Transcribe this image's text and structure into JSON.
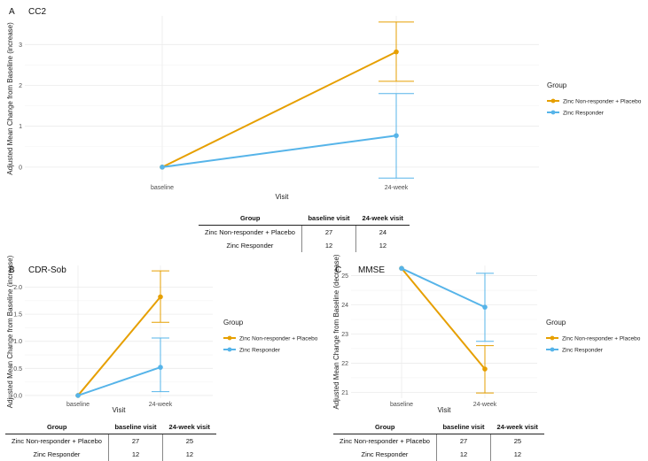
{
  "colors": {
    "nonresponder": "#E69F00",
    "responder": "#56B4E9",
    "grid": "#ebebeb"
  },
  "chart_data": [
    {
      "type": "line",
      "panel_letter": "A",
      "title": "CC2",
      "xlabel": "Visit",
      "ylabel": "Adjusted Mean Change from Baseline (increase)",
      "categories": [
        "baseline",
        "24-week"
      ],
      "ylim": [
        -0.35,
        3.7
      ],
      "yticks": [
        0,
        1,
        2,
        3
      ],
      "ytick_labels": [
        "0",
        "1",
        "2",
        "3"
      ],
      "legend_title": "Group",
      "legend_position": "right",
      "series": [
        {
          "name": "Zinc Non-responder + Placebo",
          "color": "#E69F00",
          "values": [
            0,
            2.82
          ],
          "ci": [
            null,
            [
              2.1,
              3.55
            ]
          ]
        },
        {
          "name": "Zinc Responder",
          "color": "#56B4E9",
          "values": [
            0,
            0.77
          ],
          "ci": [
            null,
            [
              -0.27,
              1.8
            ]
          ]
        }
      ],
      "table": {
        "headers": [
          "Group",
          "baseline visit",
          "24-week visit"
        ],
        "rows": [
          [
            "Zinc Non-responder + Placebo",
            "27",
            "24"
          ],
          [
            "Zinc Responder",
            "12",
            "12"
          ]
        ]
      }
    },
    {
      "type": "line",
      "panel_letter": "B",
      "title": "CDR-Sob",
      "xlabel": "Visit",
      "ylabel": "Adjusted Mean Change from Baseline (increase)",
      "categories": [
        "baseline",
        "24-week"
      ],
      "ylim": [
        -0.05,
        2.4
      ],
      "yticks": [
        0,
        0.5,
        1,
        1.5,
        2
      ],
      "ytick_labels": [
        "0.0",
        "0.5",
        "1.0",
        "1.5",
        "2.0"
      ],
      "legend_title": "Group",
      "legend_position": "right",
      "series": [
        {
          "name": "Zinc Non-responder + Placebo",
          "color": "#E69F00",
          "values": [
            0,
            1.82
          ],
          "ci": [
            null,
            [
              1.35,
              2.3
            ]
          ]
        },
        {
          "name": "Zinc Responder",
          "color": "#56B4E9",
          "values": [
            0,
            0.52
          ],
          "ci": [
            null,
            [
              0.07,
              1.06
            ]
          ]
        }
      ],
      "table": {
        "headers": [
          "Group",
          "baseline visit",
          "24-week visit"
        ],
        "rows": [
          [
            "Zinc Non-responder + Placebo",
            "27",
            "25"
          ],
          [
            "Zinc Responder",
            "12",
            "12"
          ]
        ]
      }
    },
    {
      "type": "line",
      "panel_letter": "C",
      "title": "MMSE",
      "xlabel": "Visit",
      "ylabel": "Adjusted Mean Change from Baseline (decrease)",
      "categories": [
        "baseline",
        "24-week"
      ],
      "ylim": [
        20.8,
        25.35
      ],
      "yticks": [
        21,
        22,
        23,
        24,
        25
      ],
      "ytick_labels": [
        "21",
        "22",
        "23",
        "24",
        "25"
      ],
      "legend_title": "Group",
      "legend_position": "right",
      "series": [
        {
          "name": "Zinc Non-responder + Placebo",
          "color": "#E69F00",
          "values": [
            25.25,
            21.8
          ],
          "ci": [
            null,
            [
              20.98,
              22.6
            ]
          ]
        },
        {
          "name": "Zinc Responder",
          "color": "#56B4E9",
          "values": [
            25.25,
            23.92
          ],
          "ci": [
            null,
            [
              22.75,
              25.08
            ]
          ]
        }
      ],
      "table": {
        "headers": [
          "Group",
          "baseline visit",
          "24-week visit"
        ],
        "rows": [
          [
            "Zinc Non-responder + Placebo",
            "27",
            "25"
          ],
          [
            "Zinc Responder",
            "12",
            "12"
          ]
        ]
      }
    }
  ]
}
